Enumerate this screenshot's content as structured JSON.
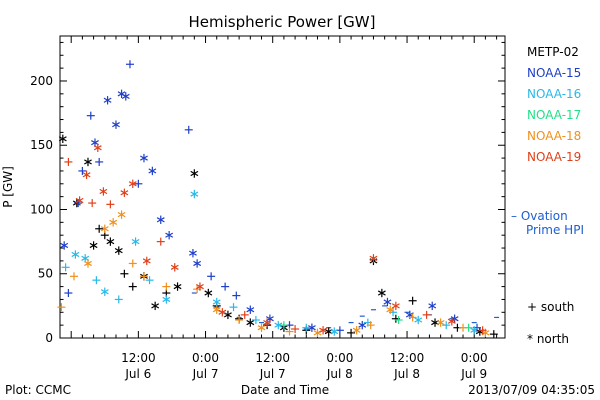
{
  "chart_data": {
    "type": "scatter",
    "title": "Hemispheric Power [GW]",
    "xlabel": "Date and Time",
    "ylabel": "P [GW]",
    "ylim": [
      0,
      235
    ],
    "xlim": [
      "2013-07-05 22:00",
      "2013-07-09 05:30"
    ],
    "y_ticks": [
      0,
      50,
      100,
      150,
      200
    ],
    "x_ticks": [
      {
        "x": "2013-07-06 12:00",
        "label_time": "12:00",
        "label_date": "Jul 6"
      },
      {
        "x": "2013-07-07 00:00",
        "label_time": "0:00",
        "label_date": "Jul 7"
      },
      {
        "x": "2013-07-07 12:00",
        "label_time": "12:00",
        "label_date": "Jul 7"
      },
      {
        "x": "2013-07-08 00:00",
        "label_time": "0:00",
        "label_date": "Jul 8"
      },
      {
        "x": "2013-07-08 12:00",
        "label_time": "12:00",
        "label_date": "Jul 8"
      },
      {
        "x": "2013-07-09 00:00",
        "label_time": "0:00",
        "label_date": "Jul 9"
      }
    ],
    "legend": {
      "placement": "right",
      "satellites": [
        {
          "name": "METP-02",
          "color": "#000000"
        },
        {
          "name": "NOAA-15",
          "color": "#1f3fc8"
        },
        {
          "name": "NOAA-16",
          "color": "#2ab8e8"
        },
        {
          "name": "NOAA-17",
          "color": "#22e088"
        },
        {
          "name": "NOAA-18",
          "color": "#f0901a"
        },
        {
          "name": "NOAA-19",
          "color": "#e0401a"
        }
      ],
      "ovation_line1": "– Ovation",
      "ovation_line2": "Prime HPI",
      "ovation_color": "#1f5fd0",
      "south_label": "+ south",
      "north_label": "* north"
    },
    "series": [
      {
        "name": "METP-02",
        "color": "#000000",
        "points": [
          {
            "t": "2013-07-05 22:30",
            "y": 155,
            "m": "*"
          },
          {
            "t": "2013-07-06 01:00",
            "y": 105,
            "m": "*"
          },
          {
            "t": "2013-07-06 03:00",
            "y": 137,
            "m": "*"
          },
          {
            "t": "2013-07-06 04:00",
            "y": 72,
            "m": "*"
          },
          {
            "t": "2013-07-06 05:00",
            "y": 85,
            "m": "+"
          },
          {
            "t": "2013-07-06 06:00",
            "y": 80,
            "m": "+"
          },
          {
            "t": "2013-07-06 07:00",
            "y": 75,
            "m": "*"
          },
          {
            "t": "2013-07-06 08:30",
            "y": 68,
            "m": "*"
          },
          {
            "t": "2013-07-06 09:30",
            "y": 50,
            "m": "+"
          },
          {
            "t": "2013-07-06 11:00",
            "y": 40,
            "m": "+"
          },
          {
            "t": "2013-07-06 13:00",
            "y": 48,
            "m": "*"
          },
          {
            "t": "2013-07-06 15:00",
            "y": 25,
            "m": "*"
          },
          {
            "t": "2013-07-06 17:00",
            "y": 35,
            "m": "+"
          },
          {
            "t": "2013-07-06 19:00",
            "y": 40,
            "m": "*"
          },
          {
            "t": "2013-07-06 22:00",
            "y": 128,
            "m": "*"
          },
          {
            "t": "2013-07-07 00:30",
            "y": 35,
            "m": "*"
          },
          {
            "t": "2013-07-07 02:00",
            "y": 25,
            "m": "+"
          },
          {
            "t": "2013-07-07 04:00",
            "y": 18,
            "m": "*"
          },
          {
            "t": "2013-07-07 06:00",
            "y": 15,
            "m": "+"
          },
          {
            "t": "2013-07-07 08:00",
            "y": 12,
            "m": "*"
          },
          {
            "t": "2013-07-07 11:00",
            "y": 10,
            "m": "+"
          },
          {
            "t": "2013-07-07 14:00",
            "y": 8,
            "m": "*"
          },
          {
            "t": "2013-07-07 18:00",
            "y": 6,
            "m": "+"
          },
          {
            "t": "2013-07-07 22:00",
            "y": 5,
            "m": "*"
          },
          {
            "t": "2013-07-08 02:00",
            "y": 4,
            "m": "+"
          },
          {
            "t": "2013-07-08 06:00",
            "y": 60,
            "m": "*"
          },
          {
            "t": "2013-07-08 07:30",
            "y": 35,
            "m": "*"
          },
          {
            "t": "2013-07-08 10:00",
            "y": 15,
            "m": "+"
          },
          {
            "t": "2013-07-08 13:00",
            "y": 29,
            "m": "+"
          },
          {
            "t": "2013-07-08 17:00",
            "y": 12,
            "m": "*"
          },
          {
            "t": "2013-07-08 21:00",
            "y": 8,
            "m": "+"
          },
          {
            "t": "2013-07-09 01:00",
            "y": 5,
            "m": "*"
          },
          {
            "t": "2013-07-09 03:30",
            "y": 3,
            "m": "+"
          }
        ]
      },
      {
        "name": "NOAA-15",
        "color": "#1f3fc8",
        "points": [
          {
            "t": "2013-07-05 22:45",
            "y": 72,
            "m": "*"
          },
          {
            "t": "2013-07-05 23:30",
            "y": 35,
            "m": "+"
          },
          {
            "t": "2013-07-06 01:15",
            "y": 105,
            "m": "+"
          },
          {
            "t": "2013-07-06 02:00",
            "y": 130,
            "m": "+"
          },
          {
            "t": "2013-07-06 03:30",
            "y": 173,
            "m": "+"
          },
          {
            "t": "2013-07-06 04:15",
            "y": 152,
            "m": "*"
          },
          {
            "t": "2013-07-06 05:00",
            "y": 137,
            "m": "+"
          },
          {
            "t": "2013-07-06 06:30",
            "y": 185,
            "m": "*"
          },
          {
            "t": "2013-07-06 08:00",
            "y": 166,
            "m": "*"
          },
          {
            "t": "2013-07-06 09:00",
            "y": 190,
            "m": "*"
          },
          {
            "t": "2013-07-06 09:45",
            "y": 188,
            "m": "*"
          },
          {
            "t": "2013-07-06 10:30",
            "y": 213,
            "m": "+"
          },
          {
            "t": "2013-07-06 12:00",
            "y": 120,
            "m": "+"
          },
          {
            "t": "2013-07-06 13:00",
            "y": 140,
            "m": "*"
          },
          {
            "t": "2013-07-06 14:30",
            "y": 130,
            "m": "*"
          },
          {
            "t": "2013-07-06 16:00",
            "y": 92,
            "m": "*"
          },
          {
            "t": "2013-07-06 17:30",
            "y": 80,
            "m": "*"
          },
          {
            "t": "2013-07-06 21:00",
            "y": 162,
            "m": "+"
          },
          {
            "t": "2013-07-06 21:45",
            "y": 66,
            "m": "*"
          },
          {
            "t": "2013-07-06 22:30",
            "y": 58,
            "m": "*"
          },
          {
            "t": "2013-07-07 01:00",
            "y": 48,
            "m": "+"
          },
          {
            "t": "2013-07-07 03:30",
            "y": 40,
            "m": "+"
          },
          {
            "t": "2013-07-07 05:30",
            "y": 33,
            "m": "+"
          },
          {
            "t": "2013-07-07 08:00",
            "y": 22,
            "m": "*"
          },
          {
            "t": "2013-07-07 11:30",
            "y": 15,
            "m": "*"
          },
          {
            "t": "2013-07-07 15:00",
            "y": 10,
            "m": "+"
          },
          {
            "t": "2013-07-07 19:00",
            "y": 8,
            "m": "*"
          },
          {
            "t": "2013-07-08 00:00",
            "y": 6,
            "m": "+"
          },
          {
            "t": "2013-07-08 04:00",
            "y": 10,
            "m": "*"
          },
          {
            "t": "2013-07-08 08:30",
            "y": 28,
            "m": "*"
          },
          {
            "t": "2013-07-08 12:30",
            "y": 18,
            "m": "*"
          },
          {
            "t": "2013-07-08 16:30",
            "y": 25,
            "m": "*"
          },
          {
            "t": "2013-07-08 20:30",
            "y": 15,
            "m": "*"
          },
          {
            "t": "2013-07-09 00:30",
            "y": 8,
            "m": "+"
          }
        ]
      },
      {
        "name": "NOAA-16",
        "color": "#2ab8e8",
        "points": [
          {
            "t": "2013-07-05 23:00",
            "y": 55,
            "m": "+"
          },
          {
            "t": "2013-07-06 00:45",
            "y": 65,
            "m": "*"
          },
          {
            "t": "2013-07-06 02:30",
            "y": 62,
            "m": "*"
          },
          {
            "t": "2013-07-06 04:30",
            "y": 45,
            "m": "+"
          },
          {
            "t": "2013-07-06 06:00",
            "y": 36,
            "m": "*"
          },
          {
            "t": "2013-07-06 08:30",
            "y": 30,
            "m": "+"
          },
          {
            "t": "2013-07-06 11:30",
            "y": 75,
            "m": "*"
          },
          {
            "t": "2013-07-06 14:00",
            "y": 45,
            "m": "+"
          },
          {
            "t": "2013-07-06 17:00",
            "y": 30,
            "m": "*"
          },
          {
            "t": "2013-07-06 22:00",
            "y": 112,
            "m": "*"
          },
          {
            "t": "2013-07-07 02:00",
            "y": 28,
            "m": "*"
          },
          {
            "t": "2013-07-07 05:00",
            "y": 24,
            "m": "+"
          },
          {
            "t": "2013-07-07 09:00",
            "y": 14,
            "m": "+"
          },
          {
            "t": "2013-07-07 13:00",
            "y": 10,
            "m": "*"
          },
          {
            "t": "2013-07-07 18:00",
            "y": 8,
            "m": "+"
          },
          {
            "t": "2013-07-07 23:00",
            "y": 5,
            "m": "*"
          },
          {
            "t": "2013-07-08 05:00",
            "y": 12,
            "m": "+"
          },
          {
            "t": "2013-07-08 09:30",
            "y": 20,
            "m": "+"
          },
          {
            "t": "2013-07-08 14:00",
            "y": 14,
            "m": "*"
          },
          {
            "t": "2013-07-08 19:00",
            "y": 10,
            "m": "+"
          },
          {
            "t": "2013-07-09 00:00",
            "y": 6,
            "m": "*"
          }
        ]
      },
      {
        "name": "NOAA-17",
        "color": "#22e088",
        "points": [
          {
            "t": "2013-07-07 14:00",
            "y": 10,
            "m": "+"
          },
          {
            "t": "2013-07-08 10:30",
            "y": 14,
            "m": "+"
          },
          {
            "t": "2013-07-08 23:00",
            "y": 8,
            "m": "+"
          }
        ]
      },
      {
        "name": "NOAA-18",
        "color": "#f0901a",
        "points": [
          {
            "t": "2013-07-05 22:15",
            "y": 24,
            "m": "+"
          },
          {
            "t": "2013-07-06 00:30",
            "y": 48,
            "m": "+"
          },
          {
            "t": "2013-07-06 03:00",
            "y": 58,
            "m": "*"
          },
          {
            "t": "2013-07-06 06:00",
            "y": 85,
            "m": "*"
          },
          {
            "t": "2013-07-06 07:30",
            "y": 90,
            "m": "*"
          },
          {
            "t": "2013-07-06 09:00",
            "y": 96,
            "m": "*"
          },
          {
            "t": "2013-07-06 11:00",
            "y": 58,
            "m": "+"
          },
          {
            "t": "2013-07-06 13:00",
            "y": 48,
            "m": "+"
          },
          {
            "t": "2013-07-06 17:00",
            "y": 40,
            "m": "+"
          },
          {
            "t": "2013-07-06 22:30",
            "y": 38,
            "m": "+"
          },
          {
            "t": "2013-07-07 02:00",
            "y": 22,
            "m": "*"
          },
          {
            "t": "2013-07-07 06:00",
            "y": 14,
            "m": "+"
          },
          {
            "t": "2013-07-07 10:00",
            "y": 8,
            "m": "*"
          },
          {
            "t": "2013-07-07 15:00",
            "y": 5,
            "m": "+"
          },
          {
            "t": "2013-07-07 20:00",
            "y": 4,
            "m": "*"
          },
          {
            "t": "2013-07-08 03:00",
            "y": 6,
            "m": "*"
          },
          {
            "t": "2013-07-08 05:30",
            "y": 10,
            "m": "+"
          },
          {
            "t": "2013-07-08 09:00",
            "y": 22,
            "m": "*"
          },
          {
            "t": "2013-07-08 13:00",
            "y": 16,
            "m": "+"
          },
          {
            "t": "2013-07-08 18:00",
            "y": 12,
            "m": "*"
          },
          {
            "t": "2013-07-08 22:00",
            "y": 8,
            "m": "+"
          },
          {
            "t": "2013-07-09 02:00",
            "y": 4,
            "m": "*"
          }
        ]
      },
      {
        "name": "NOAA-19",
        "color": "#e0401a",
        "points": [
          {
            "t": "2013-07-05 23:30",
            "y": 137,
            "m": "+"
          },
          {
            "t": "2013-07-06 01:30",
            "y": 107,
            "m": "*"
          },
          {
            "t": "2013-07-06 02:45",
            "y": 127,
            "m": "*"
          },
          {
            "t": "2013-07-06 03:45",
            "y": 105,
            "m": "+"
          },
          {
            "t": "2013-07-06 04:45",
            "y": 148,
            "m": "*"
          },
          {
            "t": "2013-07-06 05:45",
            "y": 114,
            "m": "*"
          },
          {
            "t": "2013-07-06 07:00",
            "y": 104,
            "m": "+"
          },
          {
            "t": "2013-07-06 09:30",
            "y": 113,
            "m": "*"
          },
          {
            "t": "2013-07-06 11:00",
            "y": 120,
            "m": "*"
          },
          {
            "t": "2013-07-06 13:30",
            "y": 60,
            "m": "*"
          },
          {
            "t": "2013-07-06 16:00",
            "y": 75,
            "m": "+"
          },
          {
            "t": "2013-07-06 18:30",
            "y": 55,
            "m": "*"
          },
          {
            "t": "2013-07-06 23:00",
            "y": 40,
            "m": "*"
          },
          {
            "t": "2013-07-07 03:00",
            "y": 20,
            "m": "*"
          },
          {
            "t": "2013-07-07 07:00",
            "y": 18,
            "m": "+"
          },
          {
            "t": "2013-07-07 11:00",
            "y": 12,
            "m": "*"
          },
          {
            "t": "2013-07-07 16:00",
            "y": 7,
            "m": "+"
          },
          {
            "t": "2013-07-07 21:00",
            "y": 6,
            "m": "*"
          },
          {
            "t": "2013-07-08 06:00",
            "y": 62,
            "m": "*"
          },
          {
            "t": "2013-07-08 10:00",
            "y": 25,
            "m": "*"
          },
          {
            "t": "2013-07-08 15:30",
            "y": 18,
            "m": "+"
          },
          {
            "t": "2013-07-08 20:00",
            "y": 13,
            "m": "*"
          },
          {
            "t": "2013-07-09 01:30",
            "y": 6,
            "m": "+"
          }
        ]
      }
    ],
    "ovation_hpi": {
      "color": "#1f5fd0",
      "points": [
        {
          "t": "2013-07-06 22:00",
          "y": 35
        },
        {
          "t": "2013-07-07 02:00",
          "y": 24
        },
        {
          "t": "2013-07-07 06:00",
          "y": 16
        },
        {
          "t": "2013-07-07 10:00",
          "y": 12
        },
        {
          "t": "2013-07-07 14:00",
          "y": 9
        },
        {
          "t": "2013-07-07 18:00",
          "y": 7
        },
        {
          "t": "2013-07-07 22:00",
          "y": 8
        },
        {
          "t": "2013-07-08 02:00",
          "y": 12
        },
        {
          "t": "2013-07-08 04:00",
          "y": 17
        },
        {
          "t": "2013-07-08 06:00",
          "y": 22
        },
        {
          "t": "2013-07-08 08:00",
          "y": 25
        },
        {
          "t": "2013-07-08 12:00",
          "y": 20
        },
        {
          "t": "2013-07-08 16:00",
          "y": 18
        },
        {
          "t": "2013-07-08 20:00",
          "y": 15
        },
        {
          "t": "2013-07-09 00:00",
          "y": 12
        },
        {
          "t": "2013-07-09 04:00",
          "y": 16
        }
      ]
    }
  },
  "footer": {
    "credit": "Plot: CCMC",
    "timestamp": "2013/07/09 04:35:05"
  }
}
